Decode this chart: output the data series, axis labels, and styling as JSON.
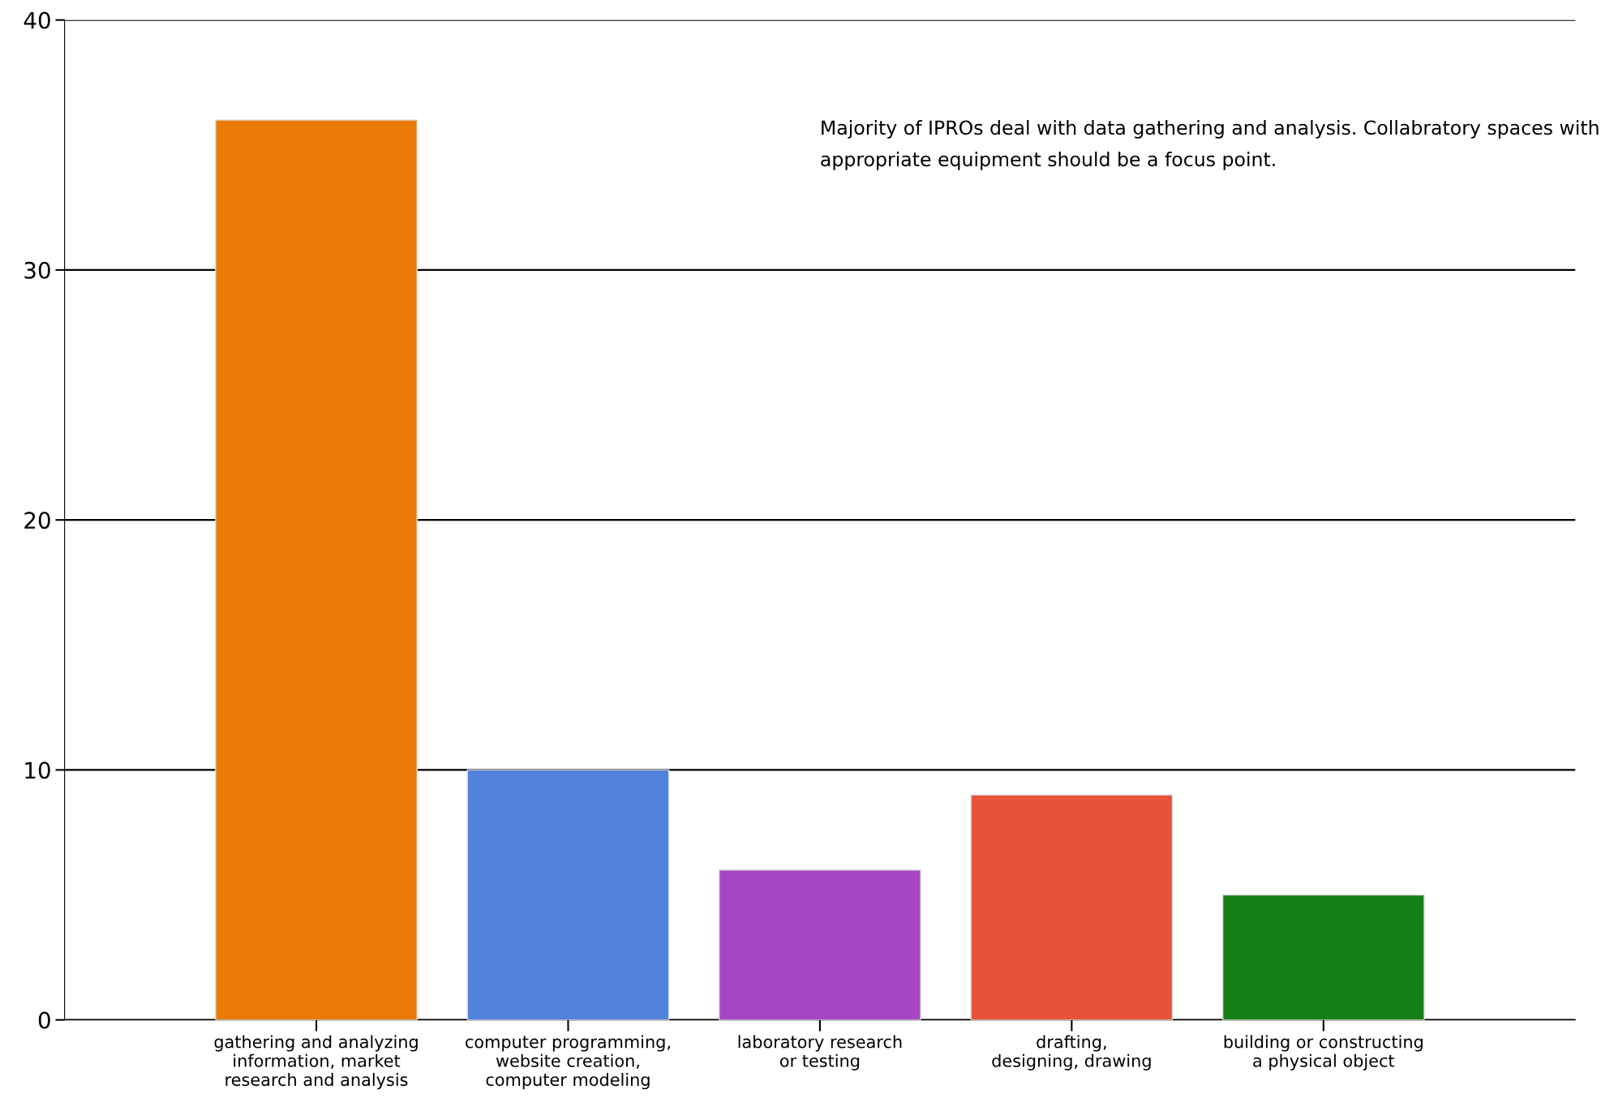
{
  "chart_data": {
    "type": "bar",
    "categories": [
      "gathering and analyzing\ninformation, market\nresearch and analysis",
      "computer programming,\nwebsite creation,\ncomputer modeling",
      "laboratory research\nor testing",
      "drafting,\ndesigning, drawing",
      "building or constructing\na physical object"
    ],
    "values": [
      36,
      10,
      6,
      9,
      5
    ],
    "colors": [
      "#e97a05",
      "#5283dc",
      "#a746c4",
      "#e9523a",
      "#167f16"
    ],
    "ylim": [
      0,
      40
    ],
    "yticks": [
      0,
      10,
      20,
      30,
      40
    ],
    "grid": "y",
    "annotations": [
      "Majority of IPROs deal with data gathering and analysis. Collabratory spaces with appropriate equipment should be a focus point."
    ]
  }
}
